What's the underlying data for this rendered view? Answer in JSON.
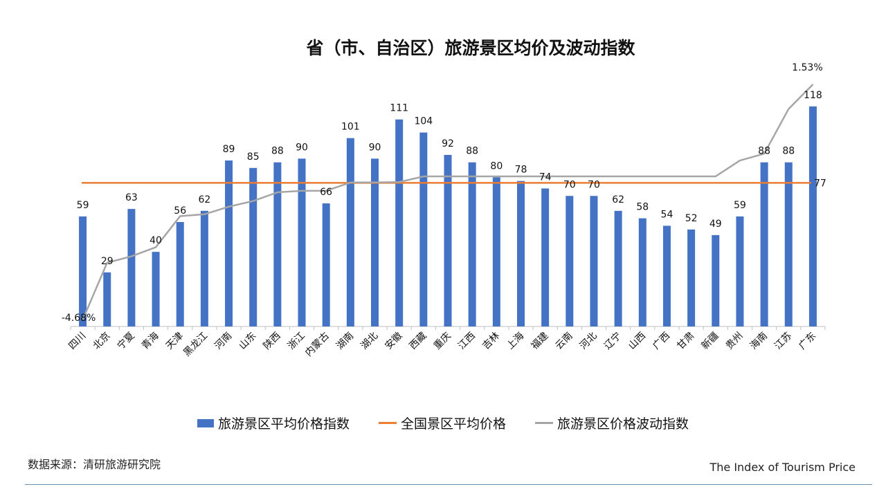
{
  "title": "省（市、自治区）旅游景区均价及波动指数",
  "source_text": "数据来源：清研旅游研究院",
  "brand_text": "The Index of Tourism Price",
  "colors": {
    "bar": "#4472c4",
    "avg_line": "#ed7d31",
    "vol_line": "#a5a5a5"
  },
  "chart_data": {
    "type": "bar",
    "categories": [
      "四川",
      "北京",
      "宁夏",
      "青海",
      "天津",
      "黑龙江",
      "河南",
      "山东",
      "陕西",
      "浙江",
      "内蒙古",
      "湖南",
      "湖北",
      "安徽",
      "西藏",
      "重庆",
      "江西",
      "吉林",
      "上海",
      "福建",
      "云南",
      "河北",
      "辽宁",
      "山西",
      "广西",
      "甘肃",
      "新疆",
      "贵州",
      "海南",
      "江苏",
      "广东"
    ],
    "series": [
      {
        "name": "旅游景区平均价格指数",
        "kind": "bar",
        "values": [
          59,
          29,
          63,
          40,
          56,
          62,
          89,
          85,
          88,
          90,
          66,
          101,
          90,
          111,
          104,
          92,
          88,
          80,
          78,
          74,
          70,
          70,
          62,
          58,
          54,
          52,
          49,
          59,
          88,
          88,
          118
        ]
      },
      {
        "name": "全国景区平均价格",
        "kind": "line",
        "value": 77,
        "label": "77"
      },
      {
        "name": "旅游景区价格波动指数",
        "kind": "line",
        "values": [
          -4.68,
          -3.18,
          -3.01,
          -2.77,
          -1.95,
          -1.9,
          -1.7,
          -1.55,
          -1.32,
          -1.28,
          -1.28,
          -1.06,
          -1.06,
          -1.05,
          -0.9,
          -0.9,
          -0.9,
          -0.9,
          -0.9,
          -0.9,
          -0.9,
          -0.9,
          -0.9,
          -0.9,
          -0.9,
          -0.9,
          -0.9,
          -0.48,
          -0.3,
          0.88,
          1.53
        ],
        "first_label": "-4.68%",
        "last_label": "1.53%"
      }
    ],
    "ylim": [
      0,
      135
    ],
    "grid": false,
    "legend_position": "bottom"
  }
}
